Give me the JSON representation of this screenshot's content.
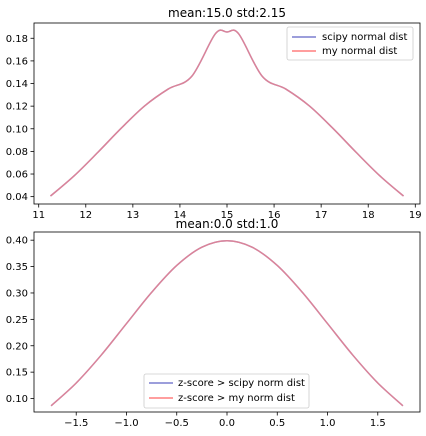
{
  "chart_data": [
    {
      "type": "line",
      "title": "mean:15.0  std:2.15",
      "xlabel": "",
      "ylabel": "",
      "xlim": [
        10.9,
        19.1
      ],
      "ylim": [
        0.0335,
        0.1935
      ],
      "xticks": [
        11,
        12,
        13,
        14,
        15,
        16,
        17,
        18,
        19
      ],
      "yticks": [
        0.04,
        0.06,
        0.08,
        0.1,
        0.12,
        0.14,
        0.16,
        0.18
      ],
      "xtick_labels": [
        "11",
        "12",
        "13",
        "14",
        "15",
        "16",
        "17",
        "18",
        "19"
      ],
      "ytick_labels": [
        "0.04",
        "0.06",
        "0.08",
        "0.10",
        "0.12",
        "0.14",
        "0.16",
        "0.18"
      ],
      "legend_position": "top-right",
      "grid": false,
      "x": [
        11.25,
        11.75,
        12.25,
        12.75,
        13.25,
        13.75,
        14.25,
        14.75,
        15.0,
        15.25,
        15.75,
        16.25,
        16.75,
        17.25,
        17.75,
        18.25,
        18.75
      ],
      "series": [
        {
          "name": "scipy normal dist",
          "color": "#7b7fcf",
          "values": [
            0.0405,
            0.0583,
            0.0789,
            0.1004,
            0.1202,
            0.1351,
            0.1463,
            0.1838,
            0.1855,
            0.1838,
            0.1463,
            0.1351,
            0.1202,
            0.1004,
            0.0789,
            0.0583,
            0.0405
          ]
        },
        {
          "name": "my normal dist",
          "color": "#ff7f7f",
          "values": [
            0.0405,
            0.0583,
            0.0789,
            0.1004,
            0.1202,
            0.1351,
            0.1463,
            0.1838,
            0.1855,
            0.1838,
            0.1463,
            0.1351,
            0.1202,
            0.1004,
            0.0789,
            0.0583,
            0.0405
          ]
        }
      ]
    },
    {
      "type": "line",
      "title": "mean:0.0  std:1.0",
      "xlabel": "",
      "ylabel": "",
      "xlim": [
        -1.92,
        1.92
      ],
      "ylim": [
        0.0745,
        0.4155
      ],
      "xticks": [
        -1.5,
        -1.0,
        -0.5,
        0.0,
        0.5,
        1.0,
        1.5
      ],
      "yticks": [
        0.1,
        0.15,
        0.2,
        0.25,
        0.3,
        0.35,
        0.4
      ],
      "xtick_labels": [
        "−1.5",
        "−1.0",
        "−0.5",
        "0.0",
        "0.5",
        "1.0",
        "1.5"
      ],
      "ytick_labels": [
        "0.10",
        "0.15",
        "0.20",
        "0.25",
        "0.30",
        "0.35",
        "0.40"
      ],
      "legend_position": "lower-center",
      "grid": false,
      "x": [
        -1.75,
        -1.5,
        -1.25,
        -1.0,
        -0.75,
        -0.5,
        -0.25,
        0.0,
        0.25,
        0.5,
        0.75,
        1.0,
        1.25,
        1.5,
        1.75
      ],
      "series": [
        {
          "name": "z-score > scipy norm dist",
          "color": "#7b7fcf",
          "values": [
            0.0863,
            0.1295,
            0.1826,
            0.242,
            0.3011,
            0.3521,
            0.3867,
            0.3989,
            0.3867,
            0.3521,
            0.3011,
            0.242,
            0.1826,
            0.1295,
            0.0863
          ]
        },
        {
          "name": "z-score > my norm dist",
          "color": "#ff7f7f",
          "values": [
            0.0863,
            0.1295,
            0.1826,
            0.242,
            0.3011,
            0.3521,
            0.3867,
            0.3989,
            0.3867,
            0.3521,
            0.3011,
            0.242,
            0.1826,
            0.1295,
            0.0863
          ]
        }
      ]
    }
  ]
}
